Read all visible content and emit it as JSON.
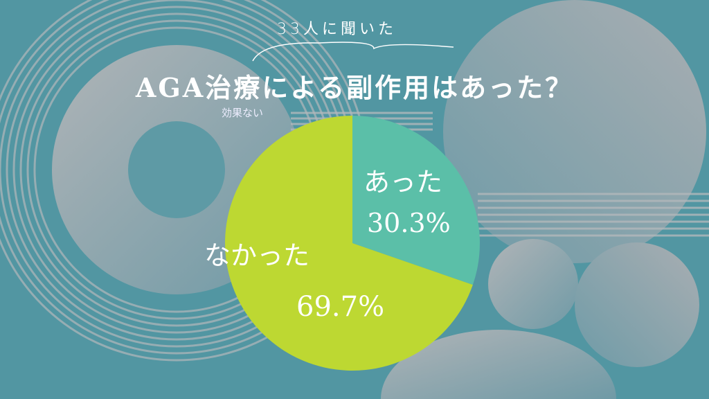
{
  "subtitle": "33人に聞いた",
  "title": "AGA治療による副作用はあった？",
  "note": "効果ない",
  "colors": {
    "background": "#5296a2",
    "decor": "#a3a9ae",
    "yes": "#5bbfa8",
    "no": "#bdd832"
  },
  "chart_data": {
    "type": "pie",
    "title": "AGA治療による副作用はあった？",
    "categories": [
      "あった",
      "なかった"
    ],
    "values": [
      30.3,
      69.7
    ],
    "value_labels": [
      "30.3%",
      "69.7%"
    ],
    "start": "top",
    "direction": "clockwise"
  }
}
